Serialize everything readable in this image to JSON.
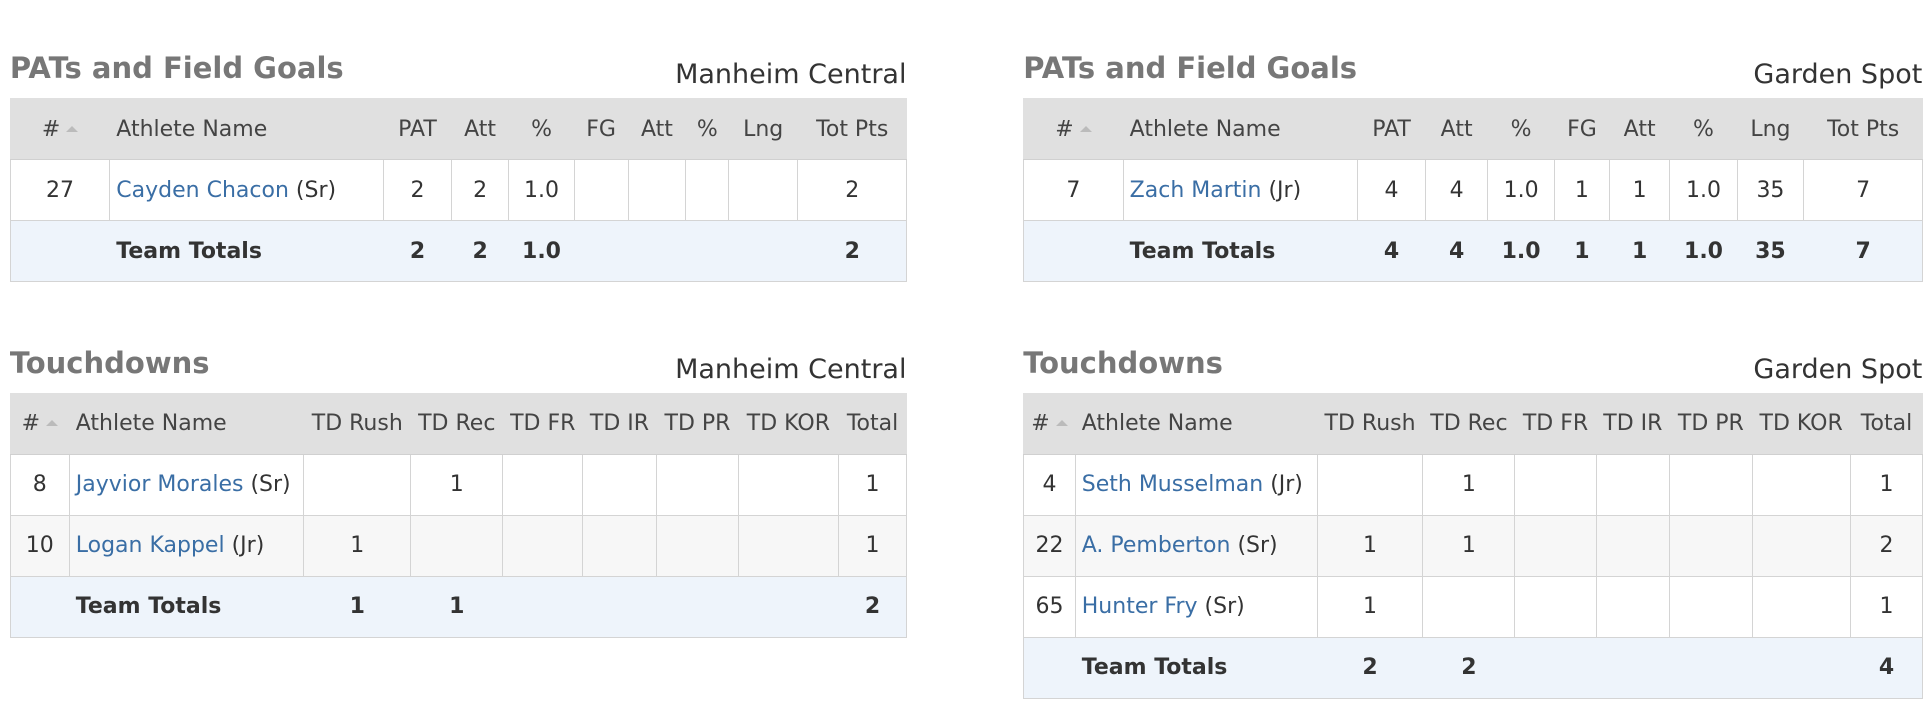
{
  "sections": [
    {
      "title": "PATs and Field Goals",
      "team": "Manheim Central",
      "columns": [
        "#",
        "Athlete Name",
        "PAT",
        "Att",
        "%",
        "FG",
        "Att",
        "%",
        "Lng",
        "Tot Pts"
      ],
      "rows": [
        {
          "number": "27",
          "name": "Cayden Chacon",
          "class": "(Sr)",
          "stats": [
            "2",
            "2",
            "1.0",
            null,
            null,
            null,
            null,
            "2"
          ]
        }
      ],
      "totals": {
        "label": "Team Totals",
        "stats": [
          "2",
          "2",
          "1.0",
          null,
          null,
          null,
          null,
          "2"
        ]
      }
    },
    {
      "title": "PATs and Field Goals",
      "team": "Garden Spot",
      "columns": [
        "#",
        "Athlete Name",
        "PAT",
        "Att",
        "%",
        "FG",
        "Att",
        "%",
        "Lng",
        "Tot Pts"
      ],
      "rows": [
        {
          "number": "7",
          "name": "Zach Martin",
          "class": "(Jr)",
          "stats": [
            "4",
            "4",
            "1.0",
            "1",
            "1",
            "1.0",
            "35",
            "7"
          ]
        }
      ],
      "totals": {
        "label": "Team Totals",
        "stats": [
          "4",
          "4",
          "1.0",
          "1",
          "1",
          "1.0",
          "35",
          "7"
        ]
      }
    },
    {
      "title": "Touchdowns",
      "team": "Manheim Central",
      "columns": [
        "#",
        "Athlete Name",
        "TD Rush",
        "TD Rec",
        "TD FR",
        "TD IR",
        "TD PR",
        "TD KOR",
        "Total"
      ],
      "rows": [
        {
          "number": "8",
          "name": "Jayvior Morales",
          "class": "(Sr)",
          "stats": [
            null,
            "1",
            null,
            null,
            null,
            null,
            "1"
          ]
        },
        {
          "number": "10",
          "name": "Logan Kappel",
          "class": "(Jr)",
          "stats": [
            "1",
            null,
            null,
            null,
            null,
            null,
            "1"
          ]
        }
      ],
      "totals": {
        "label": "Team Totals",
        "stats": [
          "1",
          "1",
          null,
          null,
          null,
          null,
          "2"
        ]
      }
    },
    {
      "title": "Touchdowns",
      "team": "Garden Spot",
      "columns": [
        "#",
        "Athlete Name",
        "TD Rush",
        "TD Rec",
        "TD FR",
        "TD IR",
        "TD PR",
        "TD KOR",
        "Total"
      ],
      "rows": [
        {
          "number": "4",
          "name": "Seth Musselman",
          "class": "(Jr)",
          "stats": [
            null,
            "1",
            null,
            null,
            null,
            null,
            "1"
          ]
        },
        {
          "number": "22",
          "name": "A. Pemberton",
          "class": "(Sr)",
          "stats": [
            "1",
            "1",
            null,
            null,
            null,
            null,
            "2"
          ]
        },
        {
          "number": "65",
          "name": "Hunter Fry",
          "class": "(Sr)",
          "stats": [
            "1",
            null,
            null,
            null,
            null,
            null,
            "1"
          ]
        }
      ],
      "totals": {
        "label": "Team Totals",
        "stats": [
          "2",
          "2",
          null,
          null,
          null,
          null,
          "4"
        ]
      }
    }
  ]
}
